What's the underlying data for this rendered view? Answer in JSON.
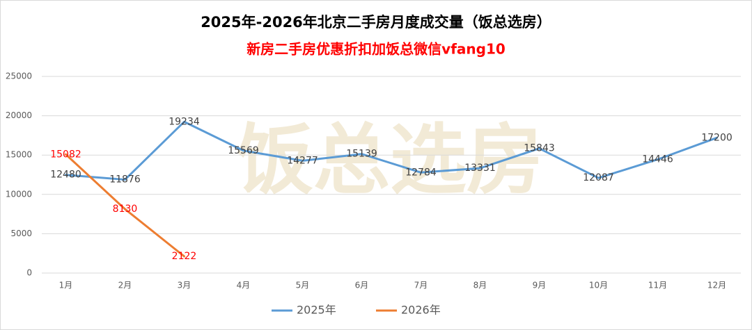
{
  "chart_data": {
    "type": "line",
    "title": "2025年-2026年北京二手房月度成交量（饭总选房）",
    "subtitle": "新房二手房优惠折扣加饭总微信vfang10",
    "watermark": "饭总选房",
    "categories": [
      "1月",
      "2月",
      "3月",
      "4月",
      "5月",
      "6月",
      "7月",
      "8月",
      "9月",
      "10月",
      "11月",
      "12月"
    ],
    "series": [
      {
        "name": "2025年",
        "color": "#5b9bd5",
        "label_color": "#404040",
        "values": [
          12480,
          11876,
          19234,
          15569,
          14277,
          15139,
          12784,
          13331,
          15843,
          12087,
          14446,
          17200
        ]
      },
      {
        "name": "2026年",
        "color": "#ed7d31",
        "label_color": "#ff0000",
        "values": [
          15082,
          8130,
          2122,
          null,
          null,
          null,
          null,
          null,
          null,
          null,
          null,
          null
        ]
      }
    ],
    "ylim": [
      0,
      25000
    ],
    "yticks": [
      0,
      5000,
      10000,
      15000,
      20000,
      25000
    ],
    "grid": true,
    "legend": "bottom"
  }
}
